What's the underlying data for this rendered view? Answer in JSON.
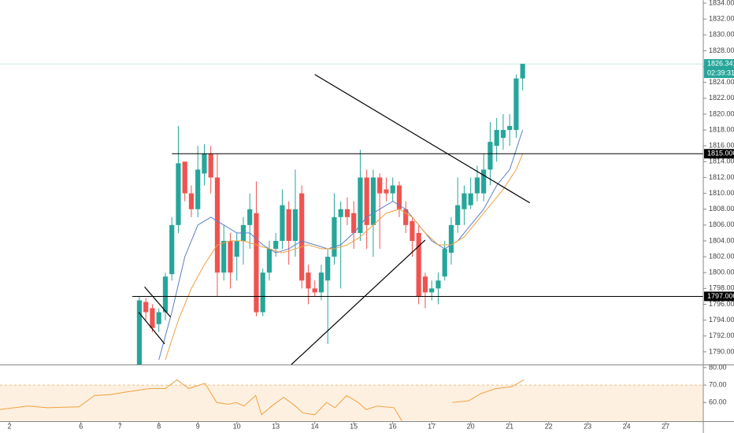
{
  "chart_data": {
    "type": "candlestick",
    "up_color": "#26a69a",
    "down_color": "#ef5350",
    "xlim": [
      -1.45,
      106.8
    ],
    "xticks": [
      {
        "value": 0,
        "label": "2"
      },
      {
        "value": 11,
        "label": "6"
      },
      {
        "value": 17,
        "label": "7"
      },
      {
        "value": 23,
        "label": "8"
      },
      {
        "value": 29,
        "label": "9"
      },
      {
        "value": 35,
        "label": "10"
      },
      {
        "value": 41,
        "label": "13"
      },
      {
        "value": 47,
        "label": "14"
      },
      {
        "value": 53,
        "label": "15"
      },
      {
        "value": 59,
        "label": "16"
      },
      {
        "value": 65,
        "label": "17"
      },
      {
        "value": 71,
        "label": "20"
      },
      {
        "value": 77,
        "label": "21"
      },
      {
        "value": 83,
        "label": "22"
      },
      {
        "value": 89,
        "label": "23"
      },
      {
        "value": 95,
        "label": "24"
      },
      {
        "value": 101,
        "label": "27"
      }
    ],
    "ylim": [
      1788.4,
      1834.4
    ],
    "yticks": [
      {
        "value": 1790,
        "label": "1790.000"
      },
      {
        "value": 1792,
        "label": "1792.000"
      },
      {
        "value": 1794,
        "label": "1794.000"
      },
      {
        "value": 1796,
        "label": "1796.000"
      },
      {
        "value": 1798,
        "label": "1798.000"
      },
      {
        "value": 1800,
        "label": "1800.000"
      },
      {
        "value": 1802,
        "label": "1802.000"
      },
      {
        "value": 1804,
        "label": "1804.000"
      },
      {
        "value": 1806,
        "label": "1806.000"
      },
      {
        "value": 1808,
        "label": "1808.000"
      },
      {
        "value": 1810,
        "label": "1810.000"
      },
      {
        "value": 1812,
        "label": "1812.000"
      },
      {
        "value": 1814,
        "label": "1814.000"
      },
      {
        "value": 1816,
        "label": "1816.000"
      },
      {
        "value": 1818,
        "label": "1818.000"
      },
      {
        "value": 1820,
        "label": "1820.000"
      },
      {
        "value": 1822,
        "label": "1822.000"
      },
      {
        "value": 1824,
        "label": "1824.000"
      },
      {
        "value": 1826,
        "label": "1826.000"
      },
      {
        "value": 1828,
        "label": "1828.000"
      },
      {
        "value": 1830,
        "label": "1830.000"
      },
      {
        "value": 1832,
        "label": "1832.000"
      },
      {
        "value": 1834,
        "label": "1834.000"
      }
    ],
    "candles": {
      "x": [
        20,
        21,
        22,
        23,
        24,
        25,
        26,
        27,
        28,
        29,
        30,
        31,
        32,
        33,
        34,
        35,
        36,
        37,
        38,
        39,
        40,
        41,
        42,
        43,
        44,
        45,
        46,
        47,
        48,
        49,
        50,
        51,
        52,
        53,
        54,
        55,
        56,
        57,
        58,
        59,
        60,
        61,
        62,
        63,
        64,
        65,
        66,
        67,
        68,
        69,
        70,
        71,
        72,
        73,
        74,
        75,
        76,
        77,
        78,
        79
      ],
      "open": [
        1788,
        1796.3,
        1795.5,
        1793.5,
        1795,
        1799.8,
        1806,
        1814,
        1810,
        1808,
        1812.5,
        1815,
        1812,
        1800,
        1804,
        1802,
        1804,
        1806,
        1807.5,
        1795,
        1800,
        1803,
        1804,
        1808,
        1804,
        1810,
        1800,
        1798,
        1797.5,
        1799,
        1802,
        1807,
        1808,
        1807.5,
        1805,
        1812,
        1806,
        1812,
        1810.5,
        1810,
        1811,
        1808,
        1806.5,
        1805,
        1799.5,
        1797.5,
        1798,
        1799.5,
        1802.5,
        1806,
        1808,
        1808.5,
        1810,
        1810,
        1813,
        1816,
        1817,
        1818,
        1818,
        1824.5
      ],
      "high": [
        1797,
        1796.8,
        1796,
        1795.5,
        1800,
        1807,
        1818.5,
        1814,
        1811,
        1816,
        1816.2,
        1816,
        1815,
        1806,
        1805,
        1805,
        1807,
        1810,
        1811.5,
        1800.5,
        1804,
        1805,
        1810.5,
        1809,
        1813,
        1811,
        1801,
        1799,
        1801,
        1803,
        1810,
        1809,
        1809.5,
        1809,
        1815.5,
        1813,
        1813,
        1812.5,
        1812,
        1812,
        1811.5,
        1809,
        1807,
        1806,
        1800,
        1799,
        1800,
        1804,
        1807,
        1812,
        1811,
        1812,
        1813.5,
        1815,
        1819,
        1819.5,
        1820,
        1820,
        1825,
        1826.341
      ],
      "low": [
        1788,
        1794,
        1792.5,
        1792.5,
        1794,
        1799,
        1805,
        1809,
        1807,
        1807,
        1811,
        1810,
        1797,
        1799,
        1798,
        1799,
        1801,
        1803,
        1794.5,
        1794.5,
        1799,
        1802,
        1803,
        1801,
        1802,
        1798,
        1796,
        1797,
        1796.5,
        1791,
        1801,
        1798,
        1806,
        1803,
        1804,
        1803,
        1802,
        1803,
        1809,
        1809,
        1807,
        1805,
        1802,
        1796,
        1795.5,
        1796.5,
        1796,
        1799,
        1801,
        1805,
        1806,
        1808,
        1809,
        1809,
        1811,
        1814,
        1815.5,
        1816,
        1817,
        1823
      ],
      "close": [
        1796.5,
        1795,
        1793,
        1795,
        1799.5,
        1806,
        1813.8,
        1810,
        1808,
        1813,
        1815,
        1812,
        1800,
        1804,
        1800,
        1804,
        1806,
        1808,
        1795,
        1800,
        1803,
        1804,
        1808.5,
        1804,
        1808,
        1799,
        1798,
        1797.5,
        1800,
        1802,
        1807,
        1808,
        1807,
        1805,
        1812,
        1806,
        1812,
        1810,
        1810,
        1811,
        1808,
        1806,
        1804,
        1797,
        1797.5,
        1798,
        1799,
        1803,
        1806,
        1808.5,
        1810,
        1810,
        1812,
        1813,
        1816.5,
        1818,
        1818,
        1818.5,
        1824.5,
        1826.341
      ]
    },
    "lines": [
      {
        "color": "#5b7fc4",
        "x": [
          23,
          25,
          27,
          29,
          31,
          33,
          35,
          37,
          39,
          41,
          43,
          45,
          47,
          49,
          51,
          53,
          55,
          57,
          59,
          61,
          63,
          65,
          67,
          69,
          71,
          73,
          75,
          77,
          79
        ],
        "values": [
          1789,
          1795,
          1802,
          1806,
          1807,
          1806,
          1805,
          1805,
          1803.5,
          1802.5,
          1803,
          1804,
          1803.5,
          1803,
          1803.5,
          1805,
          1807,
          1808,
          1809,
          1808,
          1806,
          1804,
          1803,
          1804,
          1806,
          1808,
          1811,
          1813,
          1818
        ]
      },
      {
        "color": "#f0a040",
        "x": [
          24,
          26,
          28,
          30,
          32,
          34,
          36,
          38,
          40,
          42,
          44,
          46,
          48,
          50,
          52,
          54,
          56,
          58,
          60,
          62,
          64,
          66,
          68,
          70,
          72,
          74,
          76,
          78,
          79
        ],
        "values": [
          1789,
          1794,
          1798,
          1801,
          1803.5,
          1804,
          1804,
          1803.5,
          1803,
          1802.5,
          1803,
          1803.5,
          1803,
          1803,
          1803.5,
          1804.5,
          1806,
          1807.5,
          1808,
          1807,
          1805,
          1803.5,
          1803.5,
          1804.5,
          1806.5,
          1808.5,
          1810.5,
          1813,
          1815
        ]
      }
    ],
    "levels": [
      {
        "value": 1815,
        "label": "1815.000",
        "start": 25
      },
      {
        "value": 1797,
        "label": "1797.000",
        "start": 18.9
      }
    ],
    "last_price": {
      "value": 1826.341,
      "label": "1826.341",
      "countdown": "02:39:31"
    },
    "trendlines": [
      {
        "x": [
          47,
          80.1
        ],
        "y": [
          1825,
          1808.8
        ]
      },
      {
        "x": [
          43.4,
          64
        ],
        "y": [
          1788.4,
          1804.1
        ]
      },
      {
        "x": [
          20.8,
          24.8
        ],
        "y": [
          1798.2,
          1794.4
        ]
      },
      {
        "x": [
          19.9,
          23.9
        ],
        "y": [
          1795,
          1791
        ]
      }
    ],
    "rsi": {
      "color": "#f0a040",
      "ylim": [
        49.3,
        81.3
      ],
      "overbought": 70,
      "yticks": [
        {
          "value": 60,
          "label": "60.00"
        },
        {
          "value": 70,
          "label": "70.00"
        },
        {
          "value": 80,
          "label": "80.00"
        }
      ],
      "x": [
        -1.5,
        2.8,
        5.8,
        10.7,
        13.1,
        15.5,
        17.9,
        21.6,
        24,
        25.8,
        27.6,
        30.1,
        31.9,
        33.7,
        34.9,
        36.1,
        37.9,
        38.8,
        40.4,
        42.2,
        44,
        45.2,
        47,
        48.8,
        50.1,
        51.9,
        53.7,
        54.9,
        56.7,
        59.2,
        60.4,
        null,
        68.2,
        70.7,
        72.5,
        74.9,
        77.3,
        79.2
      ],
      "values": [
        56,
        58,
        57,
        57.5,
        64,
        64.5,
        66,
        68,
        68,
        73,
        68,
        71,
        60,
        59,
        60,
        58,
        64,
        53,
        58,
        63,
        58,
        54,
        53,
        60,
        57,
        64,
        60,
        56,
        58,
        57,
        49.5,
        null,
        60,
        61,
        65,
        68,
        69,
        73
      ]
    }
  }
}
